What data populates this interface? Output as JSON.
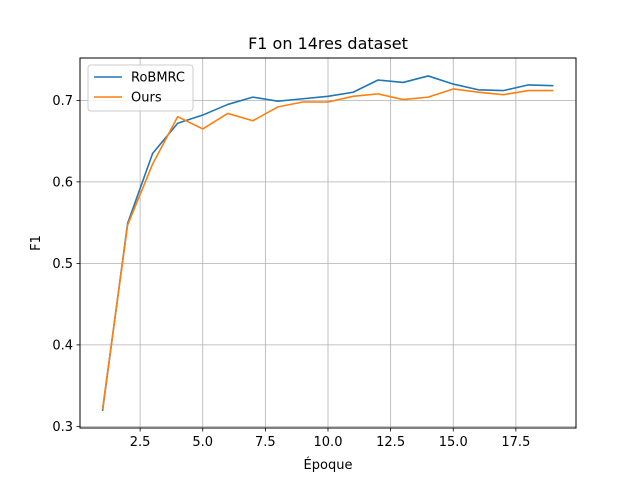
{
  "chart_data": {
    "type": "line",
    "title": "F1 on 14res dataset",
    "xlabel": "Époque",
    "ylabel": "F1",
    "xlim": [
      0.1,
      19.9
    ],
    "ylim": [
      0.298,
      0.752
    ],
    "xticks": [
      2.5,
      5.0,
      7.5,
      10.0,
      12.5,
      15.0,
      17.5
    ],
    "xtick_labels": [
      "2.5",
      "5.0",
      "7.5",
      "10.0",
      "12.5",
      "15.0",
      "17.5"
    ],
    "yticks": [
      0.3,
      0.4,
      0.5,
      0.6,
      0.7
    ],
    "ytick_labels": [
      "0.3",
      "0.4",
      "0.5",
      "0.6",
      "0.7"
    ],
    "grid": true,
    "legend_position": "top-left",
    "x": [
      1,
      2,
      3,
      4,
      5,
      6,
      7,
      8,
      9,
      10,
      11,
      12,
      13,
      14,
      15,
      16,
      17,
      18,
      19
    ],
    "series": [
      {
        "name": "RoBMRC",
        "color": "#1f77b4",
        "values": [
          0.319,
          0.549,
          0.635,
          0.672,
          0.682,
          0.695,
          0.704,
          0.699,
          0.702,
          0.705,
          0.71,
          0.725,
          0.722,
          0.73,
          0.72,
          0.713,
          0.712,
          0.719,
          0.718
        ]
      },
      {
        "name": "Ours",
        "color": "#ff7f0e",
        "values": [
          0.321,
          0.547,
          0.622,
          0.68,
          0.665,
          0.684,
          0.675,
          0.692,
          0.698,
          0.698,
          0.705,
          0.708,
          0.701,
          0.704,
          0.714,
          0.71,
          0.707,
          0.712,
          0.712
        ]
      }
    ]
  }
}
